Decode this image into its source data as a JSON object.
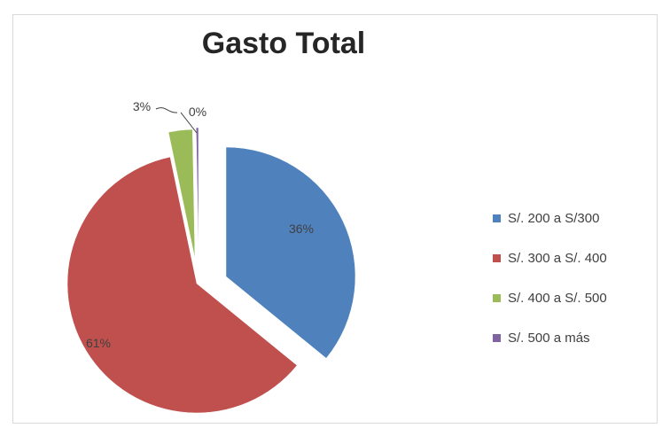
{
  "chart_data": {
    "type": "pie",
    "title": "Gasto Total",
    "categories": [
      "S/. 200 a S/300",
      "S/. 300 a S/. 400",
      "S/. 400 a S/. 500",
      "S/. 500 a más"
    ],
    "values": [
      36,
      61,
      3,
      0.3
    ],
    "data_labels": [
      "36%",
      "61%",
      "3%",
      "0%"
    ],
    "colors": [
      "#4f81bd",
      "#c0504d",
      "#9bbb59",
      "#8064a2"
    ],
    "exploded": true,
    "legend_position": "right"
  }
}
